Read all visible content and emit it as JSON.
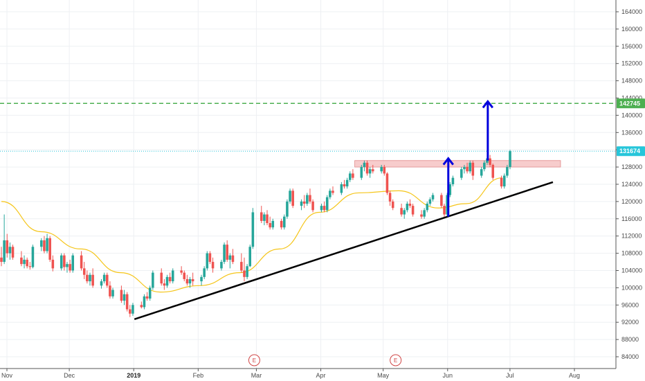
{
  "chart_data": {
    "type": "candlestick",
    "title": "",
    "y_axis": {
      "range": [
        81000,
        166000
      ],
      "ticks": [
        84000,
        88000,
        92000,
        96000,
        100000,
        104000,
        108000,
        112000,
        116000,
        120000,
        124000,
        128000,
        132000,
        136000,
        140000,
        144000,
        148000,
        152000,
        156000,
        160000,
        164000
      ],
      "position": "right"
    },
    "x_axis": {
      "ticks": [
        {
          "label": "Nov",
          "bold": false
        },
        {
          "label": "Dec",
          "bold": false
        },
        {
          "label": "2019",
          "bold": true
        },
        {
          "label": "Feb",
          "bold": false
        },
        {
          "label": "Mar",
          "bold": false
        },
        {
          "label": "Apr",
          "bold": false
        },
        {
          "label": "May",
          "bold": false
        },
        {
          "label": "Jun",
          "bold": false
        },
        {
          "label": "Jul",
          "bold": false
        },
        {
          "label": "Aug",
          "bold": false
        }
      ]
    },
    "grid": true,
    "colors": {
      "up": "#26a69a",
      "down": "#ef5350",
      "ma": "#f5c518",
      "trendline": "#000000",
      "arrow": "#0000dd",
      "target_line": "#4caf50",
      "current_line": "#26c6da",
      "resistance_zone": "#f4b6b6"
    },
    "series": [
      {
        "kind": "candles",
        "description": "daily OHLC, approximate",
        "start": "2018-10-29",
        "candles": [
          [
            107000,
            109500,
            105000,
            106000
          ],
          [
            106000,
            117000,
            105500,
            111000
          ],
          [
            111000,
            112500,
            107000,
            108000
          ],
          [
            108000,
            110500,
            106500,
            109500
          ],
          [
            109500,
            110000,
            106500,
            107000
          ],
          [
            107000,
            108500,
            105000,
            105500
          ],
          [
            105500,
            107500,
            104500,
            106500
          ],
          [
            106500,
            107000,
            104500,
            105000
          ],
          [
            105000,
            106000,
            104200,
            104800
          ],
          [
            104800,
            110000,
            104500,
            109500
          ],
          [
            109500,
            111500,
            108500,
            111000
          ],
          [
            111000,
            112000,
            108000,
            108500
          ],
          [
            108500,
            112500,
            108000,
            111500
          ],
          [
            111500,
            112000,
            106000,
            106500
          ],
          [
            106500,
            107500,
            103800,
            104500
          ],
          [
            104500,
            108000,
            104000,
            107500
          ],
          [
            107500,
            108000,
            104000,
            104800
          ],
          [
            104800,
            106000,
            103500,
            105500
          ],
          [
            105500,
            106500,
            103500,
            104000
          ],
          [
            104000,
            108000,
            103500,
            107500
          ],
          [
            107500,
            108500,
            104000,
            104500
          ],
          [
            104500,
            106000,
            102000,
            103000
          ],
          [
            103000,
            104000,
            101000,
            101500
          ],
          [
            101500,
            103500,
            100500,
            103000
          ],
          [
            103000,
            104500,
            100000,
            100500
          ],
          [
            100500,
            102000,
            99800,
            101500
          ],
          [
            101500,
            103500,
            101000,
            103000
          ],
          [
            103000,
            103500,
            100000,
            100500
          ],
          [
            100500,
            101500,
            97500,
            98000
          ],
          [
            98000,
            100000,
            97500,
            99500
          ],
          [
            99500,
            100500,
            96500,
            97000
          ],
          [
            97000,
            99500,
            96000,
            98500
          ],
          [
            98500,
            99000,
            94500,
            95000
          ],
          [
            95000,
            96000,
            93200,
            94000
          ],
          [
            94000,
            96500,
            93500,
            96000
          ],
          [
            96000,
            96800,
            95200,
            95500
          ],
          [
            95500,
            98500,
            95000,
            98000
          ],
          [
            98000,
            99000,
            97000,
            97500
          ],
          [
            97500,
            100500,
            97000,
            100000
          ],
          [
            100000,
            104000,
            99500,
            103500
          ],
          [
            103500,
            104500,
            100500,
            101000
          ],
          [
            101000,
            102000,
            99500,
            100500
          ],
          [
            100500,
            103000,
            100000,
            102500
          ],
          [
            102500,
            103500,
            101000,
            101500
          ],
          [
            101500,
            104500,
            101000,
            104000
          ],
          [
            104000,
            105000,
            103000,
            103500
          ],
          [
            103500,
            104000,
            101500,
            102000
          ],
          [
            102000,
            103000,
            100500,
            101000
          ],
          [
            101000,
            102500,
            100000,
            102000
          ],
          [
            102000,
            103500,
            100500,
            101500
          ],
          [
            101500,
            103000,
            100500,
            102500
          ],
          [
            102500,
            105000,
            102000,
            104500
          ],
          [
            104500,
            108500,
            104000,
            108000
          ],
          [
            108000,
            108500,
            105500,
            106000
          ],
          [
            106000,
            107000,
            103500,
            104500
          ],
          [
            104500,
            106500,
            104000,
            106000
          ],
          [
            106000,
            110500,
            105500,
            110000
          ],
          [
            110000,
            111000,
            106000,
            106500
          ],
          [
            106500,
            108000,
            104500,
            107500
          ],
          [
            107500,
            109000,
            105500,
            106000
          ],
          [
            106000,
            108000,
            103500,
            104000
          ],
          [
            104000,
            107000,
            101500,
            102500
          ],
          [
            102500,
            105500,
            102000,
            105000
          ],
          [
            105000,
            110000,
            104800,
            109500
          ],
          [
            109500,
            118500,
            109000,
            117500
          ],
          [
            117500,
            119000,
            115000,
            115500
          ],
          [
            115500,
            117500,
            114500,
            117000
          ],
          [
            117000,
            118000,
            114500,
            115000
          ],
          [
            115000,
            116500,
            113500,
            114000
          ],
          [
            114000,
            116000,
            113500,
            115500
          ],
          [
            115500,
            116000,
            113500,
            114000
          ],
          [
            114000,
            117000,
            113500,
            116500
          ],
          [
            116500,
            120500,
            116000,
            120000
          ],
          [
            120000,
            123000,
            119500,
            122500
          ],
          [
            122500,
            123000,
            118500,
            119000
          ],
          [
            119000,
            120500,
            118000,
            120000
          ],
          [
            120000,
            121500,
            118500,
            119500
          ],
          [
            119500,
            122000,
            119000,
            121500
          ],
          [
            121500,
            123000,
            119500,
            120000
          ],
          [
            120000,
            120500,
            117500,
            118000
          ],
          [
            118000,
            119500,
            117500,
            119000
          ],
          [
            119000,
            120000,
            117500,
            118000
          ],
          [
            118000,
            121500,
            117500,
            121000
          ],
          [
            121000,
            123000,
            120500,
            122500
          ],
          [
            122500,
            123500,
            121500,
            122000
          ],
          [
            122000,
            124500,
            121500,
            124000
          ],
          [
            124000,
            125000,
            123000,
            123500
          ],
          [
            123500,
            125500,
            123000,
            125000
          ],
          [
            125000,
            127000,
            124500,
            126500
          ],
          [
            126500,
            127500,
            125000,
            125500
          ],
          [
            125500,
            128500,
            125000,
            128000
          ],
          [
            128000,
            129500,
            127000,
            129000
          ],
          [
            129000,
            129500,
            126000,
            126500
          ],
          [
            126500,
            128000,
            125500,
            127500
          ],
          [
            127500,
            128500,
            126500,
            127000
          ],
          [
            127000,
            128500,
            126500,
            128000
          ],
          [
            128000,
            128500,
            126000,
            126500
          ],
          [
            126500,
            126800,
            121500,
            122000
          ],
          [
            122000,
            122500,
            119000,
            120000
          ],
          [
            120000,
            120500,
            118000,
            118500
          ],
          [
            118500,
            119500,
            116500,
            117000
          ],
          [
            117000,
            118500,
            116000,
            118000
          ],
          [
            118000,
            120000,
            117500,
            119500
          ],
          [
            119500,
            120500,
            118500,
            119000
          ],
          [
            119000,
            119500,
            116500,
            117000
          ],
          [
            117000,
            118000,
            116000,
            116500
          ],
          [
            116500,
            118500,
            116000,
            118000
          ],
          [
            118000,
            120000,
            117500,
            119500
          ],
          [
            119500,
            121000,
            119000,
            120500
          ],
          [
            120500,
            122000,
            120000,
            121500
          ],
          [
            121500,
            122000,
            118500,
            119000
          ],
          [
            119000,
            119500,
            116300,
            117000
          ],
          [
            117000,
            122000,
            116500,
            121500
          ],
          [
            121500,
            124500,
            121000,
            124000
          ],
          [
            124000,
            126000,
            123500,
            125500
          ],
          [
            125500,
            128000,
            125000,
            127500
          ],
          [
            127500,
            128500,
            126500,
            128000
          ],
          [
            128000,
            129000,
            126500,
            127000
          ],
          [
            127000,
            129500,
            126500,
            129000
          ],
          [
            129000,
            129500,
            125000,
            126000
          ],
          [
            126000,
            128000,
            125500,
            127500
          ],
          [
            127500,
            129500,
            127000,
            129000
          ],
          [
            129000,
            130500,
            128500,
            130000
          ],
          [
            130000,
            130800,
            128000,
            128500
          ],
          [
            128500,
            128800,
            125000,
            125500
          ],
          [
            125500,
            126000,
            123000,
            123500
          ],
          [
            123500,
            126500,
            123000,
            126000
          ],
          [
            126000,
            128500,
            125500,
            128000
          ],
          [
            128000,
            132000,
            127500,
            131674
          ]
        ]
      },
      {
        "kind": "moving_average",
        "description": "smooth yellow MA, approximate",
        "points": [
          [
            0,
            120000
          ],
          [
            10,
            113000
          ],
          [
            20,
            109000
          ],
          [
            30,
            103500
          ],
          [
            40,
            99000
          ],
          [
            50,
            100500
          ],
          [
            60,
            103500
          ],
          [
            70,
            109000
          ],
          [
            80,
            117500
          ],
          [
            90,
            122000
          ],
          [
            100,
            122500
          ],
          [
            110,
            118500
          ],
          [
            117,
            119500
          ],
          [
            126,
            125500
          ]
        ]
      },
      {
        "kind": "trendline",
        "from": [
          "2019-01-01",
          92700
        ],
        "to": [
          "2019-07-20",
          124500
        ]
      },
      {
        "kind": "resistance_zone",
        "from_date": "2019-04-16",
        "to_date": "2019-07-24",
        "low": 128000,
        "high": 129500
      },
      {
        "kind": "arrow",
        "from": [
          "2019-05-31",
          116500
        ],
        "to": [
          "2019-05-31",
          130000
        ]
      },
      {
        "kind": "arrow",
        "from": [
          "2019-06-19",
          129500
        ],
        "to": [
          "2019-06-19",
          143200
        ]
      }
    ],
    "horizontal_lines": [
      {
        "value": 142745,
        "label": "142745",
        "color": "#4caf50",
        "style": "dashed"
      },
      {
        "value": 131674,
        "label": "131674",
        "color": "#26c6da",
        "style": "dotted"
      }
    ],
    "event_markers": [
      {
        "date": "2019-02-27",
        "label": "E"
      },
      {
        "date": "2019-05-06",
        "label": "E"
      }
    ]
  }
}
